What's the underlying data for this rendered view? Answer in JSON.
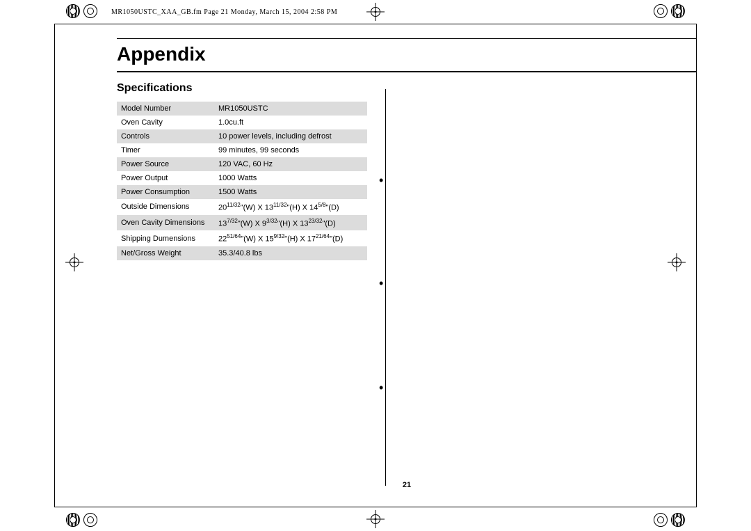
{
  "header": {
    "filename_line": "MR1050USTC_XAA_GB.fm  Page 21  Monday, March 15, 2004  2:58 PM"
  },
  "title": "Appendix",
  "subtitle": "Specifications",
  "page_number": "21",
  "spec_rows": [
    {
      "label": "Model Number",
      "value": "MR1050USTC",
      "shade": true
    },
    {
      "label": "Oven Cavity",
      "value": "1.0cu.ft",
      "shade": false
    },
    {
      "label": "Controls",
      "value": "10 power levels, including defrost",
      "shade": true
    },
    {
      "label": "Timer",
      "value": "99 minutes, 99 seconds",
      "shade": false
    },
    {
      "label": "Power Source",
      "value": "120 VAC, 60 Hz",
      "shade": true
    },
    {
      "label": "Power Output",
      "value": "1000 Watts",
      "shade": false
    },
    {
      "label": "Power Consumption",
      "value": "1500 Watts",
      "shade": true
    },
    {
      "label": "Outside Dimensions",
      "value_html": "20<sup>11/32</sup>\"(W) X 13<sup>11/32</sup>\"(H) X 14<sup>5/8</sup>\"(D)",
      "shade": false
    },
    {
      "label": "Oven Cavity Dimensions",
      "value_html": "13<sup>7/32</sup>\"(W) X 9<sup>3/32</sup>\"(H) X 13<sup>23/32</sup>\"(D)",
      "shade": true
    },
    {
      "label": "Shipping Dumensions",
      "value_html": "22<sup>51/64</sup>\"(W) X 15<sup>9/32</sup>\"(H) X 17<sup>21/64</sup>\"(D)",
      "shade": false
    },
    {
      "label": "Net/Gross Weight",
      "value": "35.3/40.8 lbs",
      "shade": true
    }
  ],
  "styling": {
    "shade_color": "#dcdcdc",
    "text_color": "#000000",
    "background": "#ffffff",
    "title_fontsize": 28,
    "subtitle_fontsize": 16,
    "body_fontsize": 11
  }
}
